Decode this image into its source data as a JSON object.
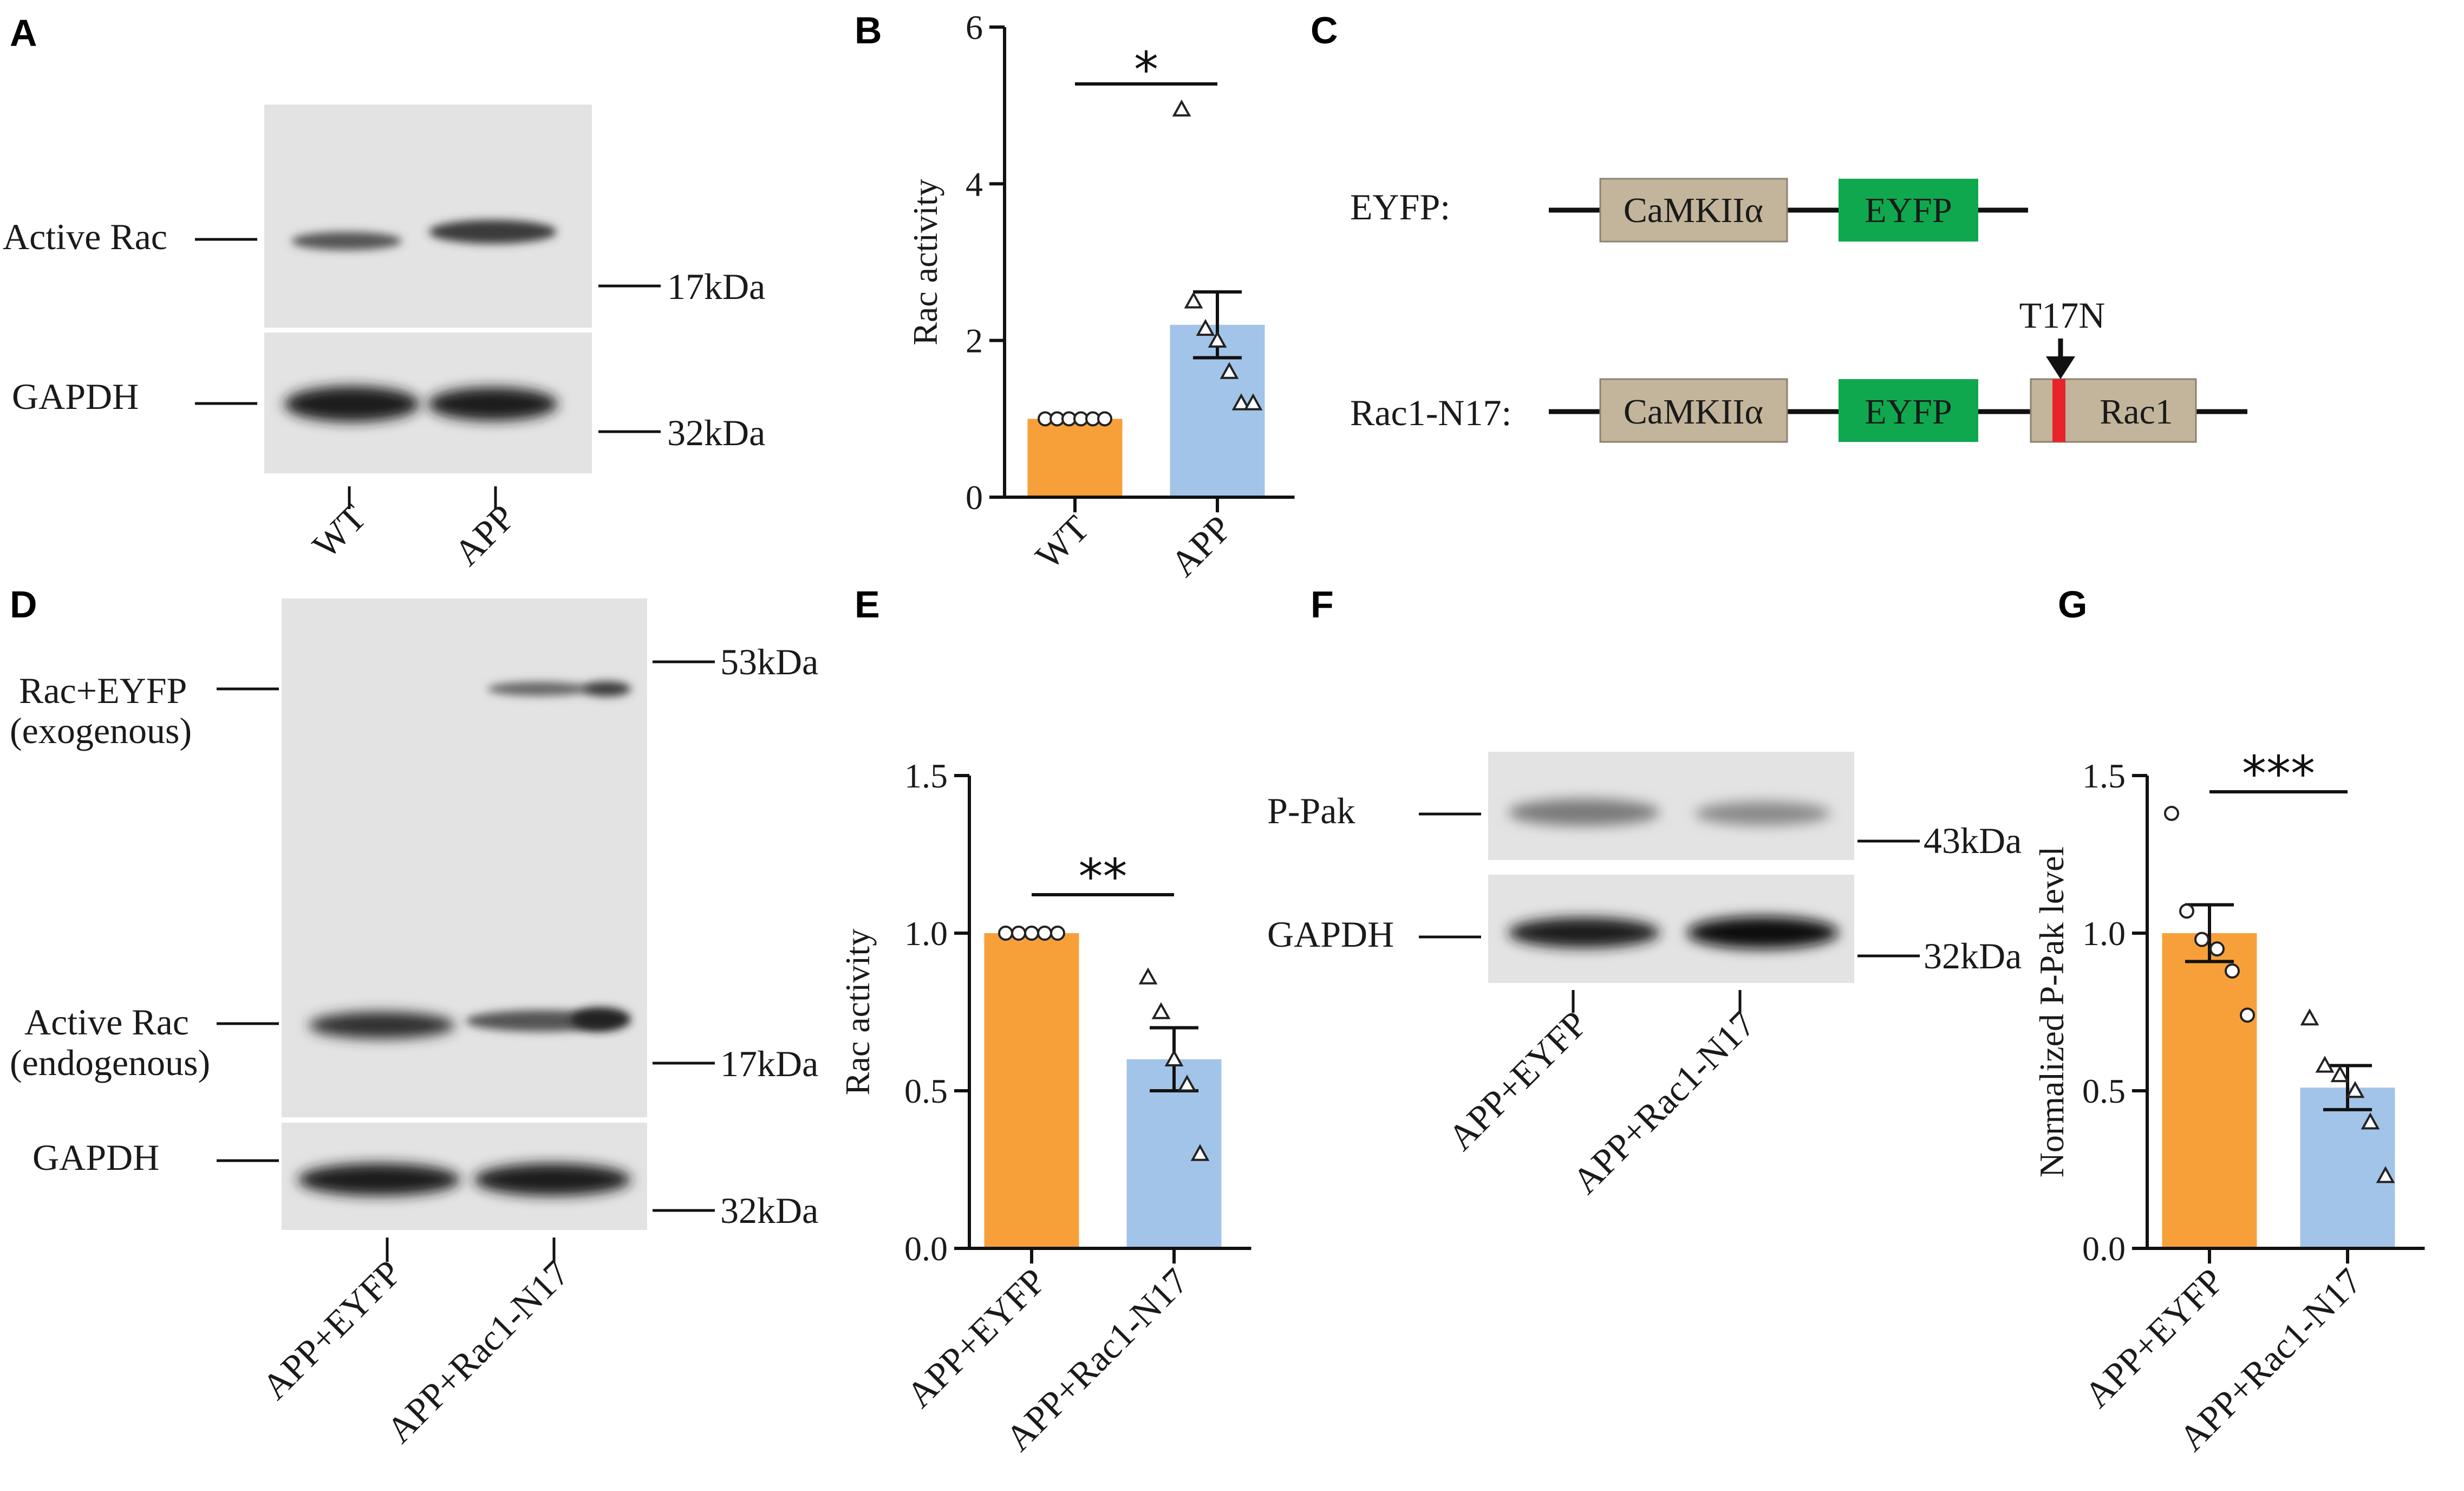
{
  "panels": {
    "A": {
      "letter": "A",
      "band_labels": [
        "Active Rac",
        "GAPDH"
      ],
      "mw_markers": [
        "17kDa",
        "32kDa"
      ],
      "lanes": [
        "WT",
        "APP"
      ]
    },
    "B": {
      "letter": "B"
    },
    "C": {
      "letter": "C",
      "construct1_label": "EYFP:",
      "construct2_label": "Rac1-N17:",
      "box_camk": "CaMKIIα",
      "box_eyfp": "EYFP",
      "box_rac1": "Rac1",
      "mutation": "T17N",
      "colors": {
        "promoter": "#c2b59b",
        "eyfp": "#0fa84f",
        "mutation": "#e8232a"
      }
    },
    "D": {
      "letter": "D",
      "band_labels": [
        "Rac+EYFP",
        "(exogenous)",
        "Active Rac",
        "(endogenous)",
        "GAPDH"
      ],
      "mw_markers": [
        "53kDa",
        "17kDa",
        "32kDa"
      ],
      "lanes": [
        "APP+EYFP",
        "APP+Rac1-N17"
      ]
    },
    "E": {
      "letter": "E"
    },
    "F": {
      "letter": "F",
      "band_labels": [
        "P-Pak",
        "GAPDH"
      ],
      "mw_markers": [
        "43kDa",
        "32kDa"
      ],
      "lanes": [
        "APP+EYFP",
        "APP+Rac1-N17"
      ]
    },
    "G": {
      "letter": "G"
    }
  },
  "chart_data": [
    {
      "panel": "B",
      "type": "bar",
      "categories": [
        "WT",
        "APP"
      ],
      "values": [
        1.0,
        2.2
      ],
      "error": [
        0,
        0.42
      ],
      "points": [
        [
          1,
          1,
          1,
          1,
          1,
          1
        ],
        [
          4.95,
          2.5,
          2.15,
          2.0,
          1.6,
          1.2,
          1.2
        ]
      ],
      "markers": [
        "circle",
        "triangle"
      ],
      "ylabel": "Rac activity",
      "ylim": [
        0,
        6
      ],
      "yticks": [
        "0",
        "2",
        "4",
        "6"
      ],
      "significance": "*",
      "colors": [
        "#f7a03a",
        "#a2c4e8"
      ]
    },
    {
      "panel": "E",
      "type": "bar",
      "categories": [
        "APP+EYFP",
        "APP+Rac1-N17"
      ],
      "values": [
        1.0,
        0.6
      ],
      "error": [
        0,
        0.1
      ],
      "points": [
        [
          1,
          1,
          1,
          1,
          1
        ],
        [
          0.86,
          0.75,
          0.6,
          0.52,
          0.3
        ]
      ],
      "markers": [
        "circle",
        "triangle"
      ],
      "ylabel": "Rac activity",
      "ylim": [
        0,
        1.5
      ],
      "yticks": [
        "0.0",
        "0.5",
        "1.0",
        "1.5"
      ],
      "significance": "**",
      "colors": [
        "#f7a03a",
        "#a2c4e8"
      ]
    },
    {
      "panel": "G",
      "type": "bar",
      "categories": [
        "APP+EYFP",
        "APP+Rac1-N17"
      ],
      "values": [
        1.0,
        0.51
      ],
      "error": [
        0.09,
        0.07
      ],
      "points": [
        [
          1.38,
          1.07,
          0.98,
          0.95,
          0.88,
          0.74
        ],
        [
          0.73,
          0.58,
          0.55,
          0.5,
          0.4,
          0.23
        ]
      ],
      "markers": [
        "circle",
        "triangle"
      ],
      "ylabel": "Normalized P-Pak level",
      "ylim": [
        0,
        1.5
      ],
      "yticks": [
        "0.0",
        "0.5",
        "1.0",
        "1.5"
      ],
      "significance": "***",
      "colors": [
        "#f7a03a",
        "#a2c4e8"
      ]
    }
  ]
}
